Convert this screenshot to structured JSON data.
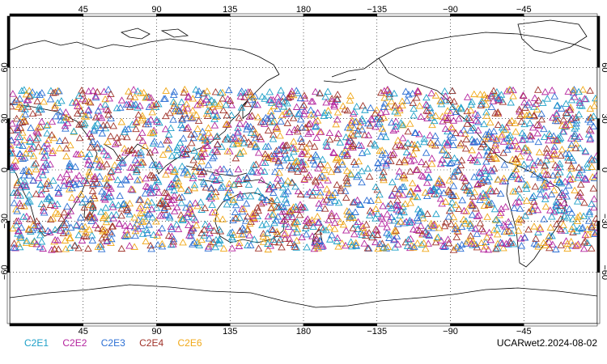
{
  "map": {
    "projection": "cylindrical-equidistant",
    "lon_center": 180,
    "lon_range": [
      0,
      360
    ],
    "lat_range": [
      -90,
      90
    ],
    "grid": true,
    "grid_style": "dotted",
    "lon_ticks": [
      {
        "lon": 45,
        "label": "45"
      },
      {
        "lon": 90,
        "label": "90"
      },
      {
        "lon": 135,
        "label": "135"
      },
      {
        "lon": 180,
        "label": "180"
      },
      {
        "lon": 225,
        "label": "−135"
      },
      {
        "lon": 270,
        "label": "−90"
      },
      {
        "lon": 315,
        "label": "−45"
      }
    ],
    "lat_ticks": [
      {
        "lat": 60,
        "label": "60"
      },
      {
        "lat": 30,
        "label": "30"
      },
      {
        "lat": 0,
        "label": "0"
      },
      {
        "lat": -30,
        "label": "−30"
      },
      {
        "lat": -60,
        "label": "−60"
      }
    ],
    "marker": "triangle-open",
    "observation_lat_band": [
      -47,
      47
    ]
  },
  "legend": {
    "items": [
      {
        "label": "C2E1",
        "color": "#1ea0c8"
      },
      {
        "label": "C2E2",
        "color": "#b4249e"
      },
      {
        "label": "C2E3",
        "color": "#2c6fd4"
      },
      {
        "label": "C2E4",
        "color": "#a0332a"
      },
      {
        "label": "C2E6",
        "color": "#f0a818"
      }
    ]
  },
  "product_label": "UCARwet2.2024-08-02",
  "land_color": "#ffffff",
  "coast_color": "#000000"
}
